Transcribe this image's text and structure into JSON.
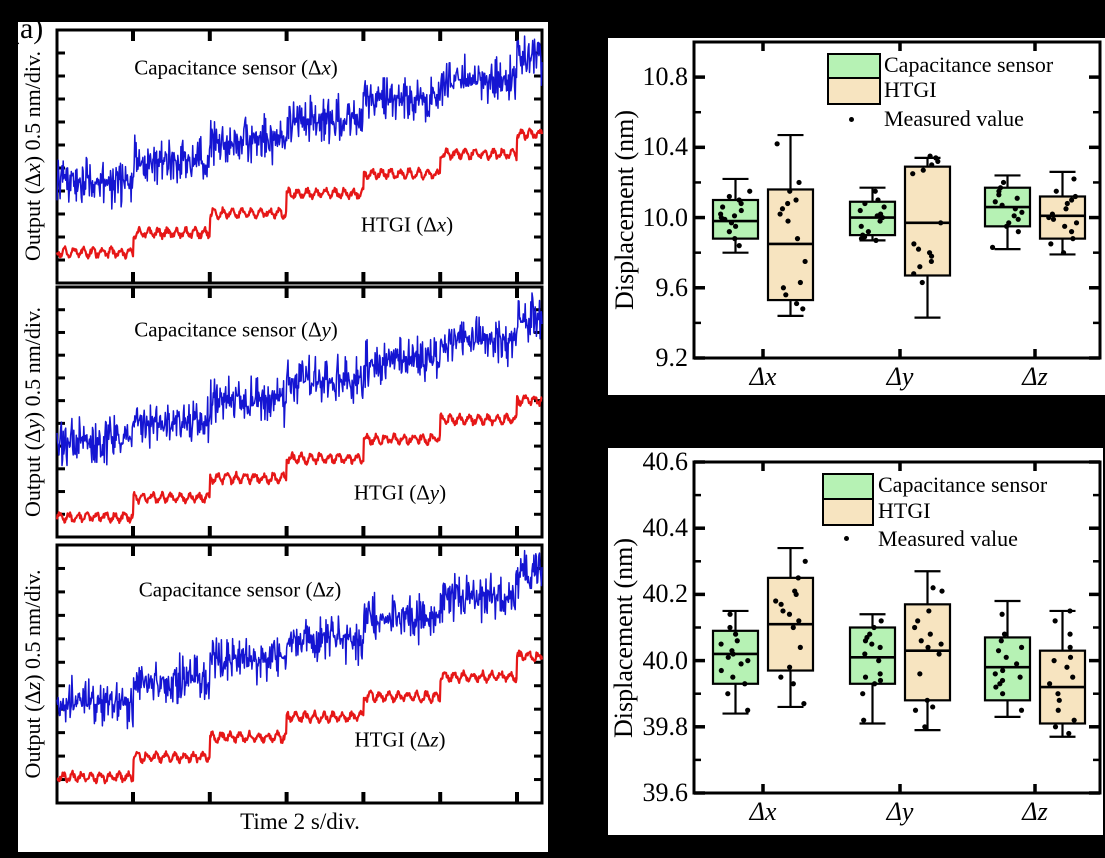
{
  "figure_label": "(a)",
  "colors": {
    "trace_blue": "#1515d2",
    "trace_red": "#e61717",
    "box_green": "#b6f2b4",
    "box_tan": "#f7e4c0",
    "frame": "#000000",
    "panel_bg": "#ffffff",
    "canvas_bg": "#000000"
  },
  "chart_data": [
    {
      "type": "line",
      "panel": "Δx",
      "ylabel": "Output (Δx) 0.5 nm/div.",
      "y_units": "0.5 nm/div.",
      "x_units": "2 s/div.",
      "steps": 6,
      "step_seconds": 2,
      "step_height_nm": 0.5,
      "series": [
        {
          "label": "Capacitance sensor (Δx)",
          "color": "#1515d2",
          "kind": "noisy",
          "amp": 22,
          "start_frac": 0.6,
          "seed": 11
        },
        {
          "label": "HTGI (Δx)",
          "color": "#e61717",
          "kind": "wavy",
          "amp": 3,
          "start_frac": 0.88,
          "seed": 12
        }
      ]
    },
    {
      "type": "line",
      "panel": "Δy",
      "ylabel": "Output (Δy) 0.5 nm/div.",
      "y_units": "0.5 nm/div.",
      "x_units": "2 s/div.",
      "steps": 6,
      "step_seconds": 2,
      "step_height_nm": 0.5,
      "series": [
        {
          "label": "Capacitance sensor (Δy)",
          "color": "#1515d2",
          "kind": "noisy",
          "amp": 22,
          "start_frac": 0.62,
          "seed": 21
        },
        {
          "label": "HTGI (Δy)",
          "color": "#e61717",
          "kind": "wavy",
          "amp": 3,
          "start_frac": 0.92,
          "seed": 22
        }
      ]
    },
    {
      "type": "line",
      "panel": "Δz",
      "ylabel": "Output (Δz) 0.5 nm/div.",
      "xlabel": "Time 2 s/div.",
      "y_units": "0.5 nm/div.",
      "x_units": "2 s/div.",
      "steps": 6,
      "step_seconds": 2,
      "step_height_nm": 0.5,
      "series": [
        {
          "label": "Capacitance sensor (Δz)",
          "color": "#1515d2",
          "kind": "noisy",
          "amp": 22,
          "start_frac": 0.61,
          "seed": 31
        },
        {
          "label": "HTGI (Δz)",
          "color": "#e61717",
          "kind": "wavy",
          "amp": 3,
          "start_frac": 0.9,
          "seed": 32
        }
      ]
    },
    {
      "type": "box",
      "ylabel": "Displacement (nm)",
      "ylim": [
        9.2,
        11.0
      ],
      "yticks": [
        9.2,
        9.6,
        10.0,
        10.4,
        10.8
      ],
      "minor_step": 0.2,
      "categories": [
        "Δx",
        "Δy",
        "Δz"
      ],
      "legend": [
        "Capacitance sensor",
        "HTGI",
        "Measured value"
      ],
      "series": [
        {
          "name": "Capacitance sensor",
          "fill": "#b6f2b4",
          "boxes": [
            {
              "low": 9.8,
              "q1": 9.88,
              "med": 9.98,
              "q3": 10.1,
              "high": 10.22,
              "points": [
                9.84,
                9.88,
                9.92,
                9.95,
                9.97,
                9.99,
                10.0,
                10.01,
                10.02,
                10.04,
                10.06,
                10.08,
                10.1,
                10.12,
                10.15
              ]
            },
            {
              "low": 9.87,
              "q1": 9.9,
              "med": 10.0,
              "q3": 10.09,
              "high": 10.17,
              "points": [
                9.87,
                9.88,
                9.89,
                9.9,
                9.92,
                9.95,
                9.98,
                10.0,
                10.01,
                10.02,
                10.04,
                10.06,
                10.08,
                10.1,
                10.15
              ]
            },
            {
              "low": 9.82,
              "q1": 9.95,
              "med": 10.06,
              "q3": 10.17,
              "high": 10.24,
              "points": [
                9.83,
                9.92,
                9.95,
                9.97,
                9.99,
                10.01,
                10.03,
                10.05,
                10.07,
                10.09,
                10.11,
                10.13,
                10.15,
                10.17,
                10.2
              ]
            }
          ]
        },
        {
          "name": "HTGI",
          "fill": "#f7e4c0",
          "boxes": [
            {
              "low": 9.44,
              "q1": 9.53,
              "med": 9.85,
              "q3": 10.16,
              "high": 10.47,
              "points": [
                9.48,
                9.51,
                9.56,
                9.6,
                9.63,
                9.75,
                9.88,
                9.98,
                10.02,
                10.05,
                10.08,
                10.1,
                10.15,
                10.2,
                10.42
              ]
            },
            {
              "low": 9.43,
              "q1": 9.67,
              "med": 9.97,
              "q3": 10.29,
              "high": 10.34,
              "points": [
                9.63,
                9.68,
                9.72,
                9.75,
                9.78,
                9.8,
                9.82,
                9.85,
                9.97,
                10.25,
                10.27,
                10.3,
                10.32,
                10.34,
                10.35
              ]
            },
            {
              "low": 9.79,
              "q1": 9.88,
              "med": 10.01,
              "q3": 10.12,
              "high": 10.26,
              "points": [
                9.8,
                9.85,
                9.88,
                9.92,
                9.95,
                9.97,
                9.99,
                10.0,
                10.02,
                10.05,
                10.08,
                10.1,
                10.12,
                10.15,
                10.22
              ]
            }
          ]
        }
      ]
    },
    {
      "type": "box",
      "ylabel": "Displacement (nm)",
      "ylim": [
        39.6,
        40.6
      ],
      "yticks": [
        39.6,
        39.8,
        40.0,
        40.2,
        40.4,
        40.6
      ],
      "minor_step": 0.1,
      "categories": [
        "Δx",
        "Δy",
        "Δz"
      ],
      "legend": [
        "Capacitance sensor",
        "HTGI",
        "Measured value"
      ],
      "series": [
        {
          "name": "Capacitance sensor",
          "fill": "#b6f2b4",
          "boxes": [
            {
              "low": 39.84,
              "q1": 39.93,
              "med": 40.02,
              "q3": 40.09,
              "high": 40.15,
              "points": [
                39.85,
                39.9,
                39.93,
                39.95,
                39.97,
                39.99,
                40.0,
                40.01,
                40.02,
                40.03,
                40.05,
                40.06,
                40.08,
                40.1,
                40.14
              ]
            },
            {
              "low": 39.81,
              "q1": 39.93,
              "med": 40.01,
              "q3": 40.1,
              "high": 40.14,
              "points": [
                39.82,
                39.9,
                39.93,
                39.94,
                39.95,
                39.96,
                40.0,
                40.02,
                40.04,
                40.05,
                40.06,
                40.07,
                40.08,
                40.1,
                40.12
              ]
            },
            {
              "low": 39.83,
              "q1": 39.88,
              "med": 39.98,
              "q3": 40.07,
              "high": 40.18,
              "points": [
                39.85,
                39.9,
                39.92,
                39.93,
                39.94,
                39.95,
                39.96,
                39.97,
                39.99,
                40.01,
                40.03,
                40.04,
                40.06,
                40.08,
                40.14
              ]
            }
          ]
        },
        {
          "name": "HTGI",
          "fill": "#f7e4c0",
          "boxes": [
            {
              "low": 39.86,
              "q1": 39.97,
              "med": 40.11,
              "q3": 40.25,
              "high": 40.34,
              "points": [
                39.87,
                39.93,
                39.95,
                39.98,
                40.04,
                40.1,
                40.12,
                40.14,
                40.15,
                40.17,
                40.18,
                40.2,
                40.21,
                40.25,
                40.3
              ]
            },
            {
              "low": 39.79,
              "q1": 39.88,
              "med": 40.03,
              "q3": 40.17,
              "high": 40.27,
              "points": [
                39.8,
                39.85,
                39.86,
                39.88,
                39.96,
                40.02,
                40.04,
                40.05,
                40.06,
                40.08,
                40.1,
                40.12,
                40.15,
                40.21,
                40.22
              ]
            },
            {
              "low": 39.77,
              "q1": 39.81,
              "med": 39.92,
              "q3": 40.03,
              "high": 40.15,
              "points": [
                39.78,
                39.8,
                39.82,
                39.85,
                39.88,
                39.9,
                39.93,
                39.95,
                39.98,
                40.0,
                40.01,
                40.04,
                40.08,
                40.12,
                40.15
              ]
            }
          ]
        }
      ]
    }
  ]
}
